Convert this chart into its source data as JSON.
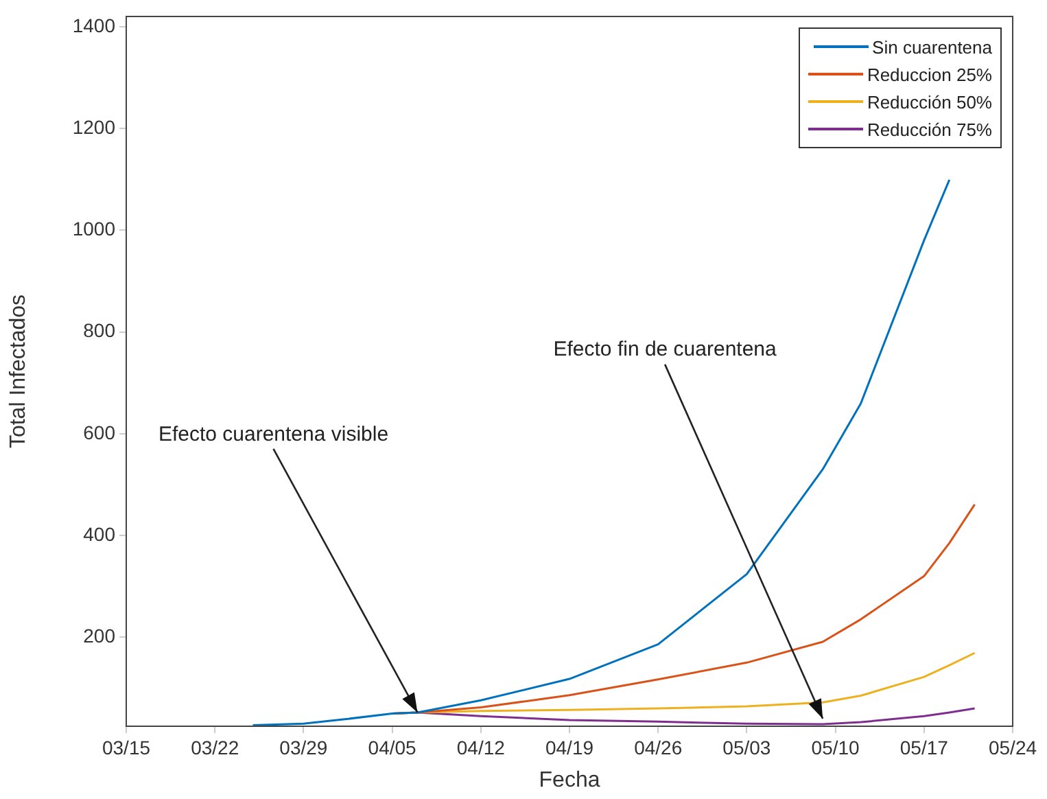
{
  "chart_data": {
    "type": "line",
    "xlabel": "Fecha",
    "ylabel": "Total Infectados",
    "x": [
      "--03-25",
      "--03-29",
      "--04-01",
      "--04-05",
      "--04-07",
      "--04-12",
      "--04-19",
      "--04-26",
      "--05-03",
      "--05-09",
      "--05-12",
      "--05-17",
      "--05-19",
      "--05-21"
    ],
    "series": [
      {
        "name": "Sin cuarentena",
        "color": "#0072bd",
        "values": [
          27,
          30,
          38,
          50,
          52,
          76,
          118,
          186,
          324,
          530,
          659,
          980,
          1099,
          null
        ]
      },
      {
        "name": "Reduccion 25%",
        "color": "#d95319",
        "values": [
          null,
          null,
          null,
          50,
          52,
          62,
          86,
          117,
          150,
          191,
          235,
          320,
          385,
          461
        ]
      },
      {
        "name": "Reducción 50%",
        "color": "#edb120",
        "values": [
          null,
          null,
          null,
          50,
          52,
          55,
          57,
          60,
          64,
          72,
          85,
          122,
          145,
          169
        ]
      },
      {
        "name": "Reducción 75%",
        "color": "#7e2f8e",
        "values": [
          null,
          null,
          null,
          50,
          52,
          45,
          37,
          34,
          30,
          29,
          33,
          45,
          52,
          60
        ]
      }
    ],
    "xlim": [
      "--03-15",
      "--05-24"
    ],
    "xticks": [
      {
        "value": "--03-15",
        "label": "03/15"
      },
      {
        "value": "--03-22",
        "label": "03/22"
      },
      {
        "value": "--03-29",
        "label": "03/29"
      },
      {
        "value": "--04-05",
        "label": "04/05"
      },
      {
        "value": "--04-12",
        "label": "04/12"
      },
      {
        "value": "--04-19",
        "label": "04/19"
      },
      {
        "value": "--04-26",
        "label": "04/26"
      },
      {
        "value": "--05-03",
        "label": "05/03"
      },
      {
        "value": "--05-10",
        "label": "05/10"
      },
      {
        "value": "--05-17",
        "label": "05/17"
      },
      {
        "value": "--05-24",
        "label": "05/24"
      }
    ],
    "ylim": [
      25,
      1420
    ],
    "yticks": [
      200,
      400,
      600,
      800,
      1000,
      1200,
      1400
    ],
    "annotations": [
      {
        "text": "Efecto cuarentena visible",
        "x": "--04-07",
        "y": 52
      },
      {
        "text": "Efecto fin de cuarentena",
        "x": "--05-09",
        "y": 40
      }
    ],
    "grid": false,
    "legend": "top right",
    "marker": "none",
    "line_style": "solid"
  }
}
